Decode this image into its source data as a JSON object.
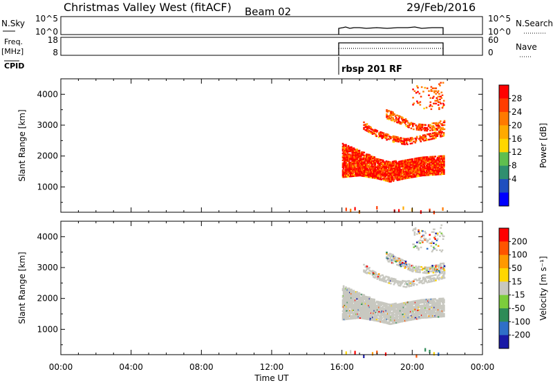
{
  "header": {
    "station": "Christmas Valley West (fitACF)",
    "beam": "Beam 02",
    "date": "29/Feb/2016"
  },
  "summary_panels": {
    "nsky_label": "N.Sky",
    "nsky_ticks": [
      "10^5",
      "10^0"
    ],
    "nsearch_label": "N.Search",
    "nsearch_ticks": [
      "10^5",
      "10^0"
    ],
    "freq_label": "Freq.",
    "freq_unit": "[MHz]",
    "freq_ticks": [
      "18",
      "8"
    ],
    "nave_label": "Nave",
    "nave_ticks": [
      "60",
      "0"
    ],
    "cpid_label": "CPID",
    "cpid_value": "rbsp 201 RF"
  },
  "colors": {
    "power_scale": [
      "#0000ff",
      "#1f4fbf",
      "#2f8f6f",
      "#5fbf4f",
      "#ffd700",
      "#ffaa00",
      "#ff7a00",
      "#ff3c00",
      "#ff0000"
    ],
    "velocity_scale": [
      "#1a1aa6",
      "#2f6fc8",
      "#2e8b57",
      "#7ccd3c",
      "#c8c8c0",
      "#ffd700",
      "#ff9900",
      "#ff5500",
      "#ff0000"
    ],
    "ground_scatter": "#c8c8c0"
  },
  "chart_data": [
    {
      "type": "heatmap",
      "name": "power",
      "ylabel": "Slant Range [km]",
      "colorbar_label": "Power [dB]",
      "colorbar_ticks": [
        "28",
        "24",
        "20",
        "16",
        "12",
        "8",
        "4"
      ],
      "xlim": [
        0,
        24
      ],
      "ylim": [
        180,
        4500
      ],
      "yticks": [
        "1000",
        "2000",
        "3000",
        "4000"
      ],
      "data_start_ut": 16.0,
      "data_end_ut": 21.85,
      "bands": [
        {
          "t": [
            16.0,
            17.0,
            18.0,
            18.7,
            19.5,
            20.5,
            21.8
          ],
          "low": [
            1300,
            1350,
            1250,
            1150,
            1250,
            1350,
            1400
          ],
          "high": [
            2400,
            2150,
            1900,
            1800,
            1850,
            1950,
            2000
          ]
        },
        {
          "t": [
            17.2,
            18.0,
            18.8,
            19.6,
            20.4,
            21.2,
            21.8
          ],
          "low": [
            2850,
            2600,
            2450,
            2350,
            2450,
            2550,
            2650
          ],
          "high": [
            3100,
            2800,
            2650,
            2550,
            2650,
            2750,
            2850
          ]
        },
        {
          "t": [
            18.5,
            19.2,
            20.0,
            20.8,
            21.8
          ],
          "low": [
            3200,
            3050,
            2850,
            2800,
            2850
          ],
          "high": [
            3500,
            3300,
            3050,
            3000,
            3150
          ]
        },
        {
          "t": [
            20.0,
            20.8,
            21.8
          ],
          "low": [
            3600,
            3500,
            3500
          ],
          "high": [
            4300,
            4200,
            4400
          ]
        }
      ],
      "near_range": {
        "low": 180,
        "high": 400
      }
    },
    {
      "type": "heatmap",
      "name": "velocity",
      "ylabel": "Slant Range [km]",
      "xlabel": "Time UT",
      "colorbar_label": "Velocity [m s⁻¹]",
      "colorbar_ticks": [
        "200",
        "100",
        "50",
        "15",
        "-15",
        "-50",
        "-100",
        "-200"
      ],
      "xlim": [
        0,
        24
      ],
      "ylim": [
        180,
        4500
      ],
      "yticks": [
        "1000",
        "2000",
        "3000",
        "4000"
      ],
      "xticks": [
        "00:00",
        "04:00",
        "08:00",
        "12:00",
        "16:00",
        "20:00",
        "00:00"
      ],
      "data_start_ut": 16.0,
      "data_end_ut": 21.85,
      "bands": [
        {
          "t": [
            16.0,
            17.0,
            18.0,
            18.7,
            19.5,
            20.5,
            21.8
          ],
          "low": [
            1300,
            1350,
            1250,
            1150,
            1250,
            1350,
            1400
          ],
          "high": [
            2400,
            2150,
            1900,
            1800,
            1850,
            1950,
            2000
          ]
        },
        {
          "t": [
            17.2,
            18.0,
            18.8,
            19.6,
            20.4,
            21.2,
            21.8
          ],
          "low": [
            2850,
            2600,
            2450,
            2350,
            2450,
            2550,
            2650
          ],
          "high": [
            3100,
            2800,
            2650,
            2550,
            2650,
            2750,
            2850
          ]
        },
        {
          "t": [
            18.5,
            19.2,
            20.0,
            20.8,
            21.8
          ],
          "low": [
            3200,
            3050,
            2850,
            2800,
            2850
          ],
          "high": [
            3500,
            3300,
            3050,
            3000,
            3150
          ]
        },
        {
          "t": [
            20.0,
            20.8,
            21.8
          ],
          "low": [
            3600,
            3500,
            3500
          ],
          "high": [
            4300,
            4200,
            4400
          ]
        }
      ],
      "near_range": {
        "low": 180,
        "high": 400
      }
    }
  ]
}
